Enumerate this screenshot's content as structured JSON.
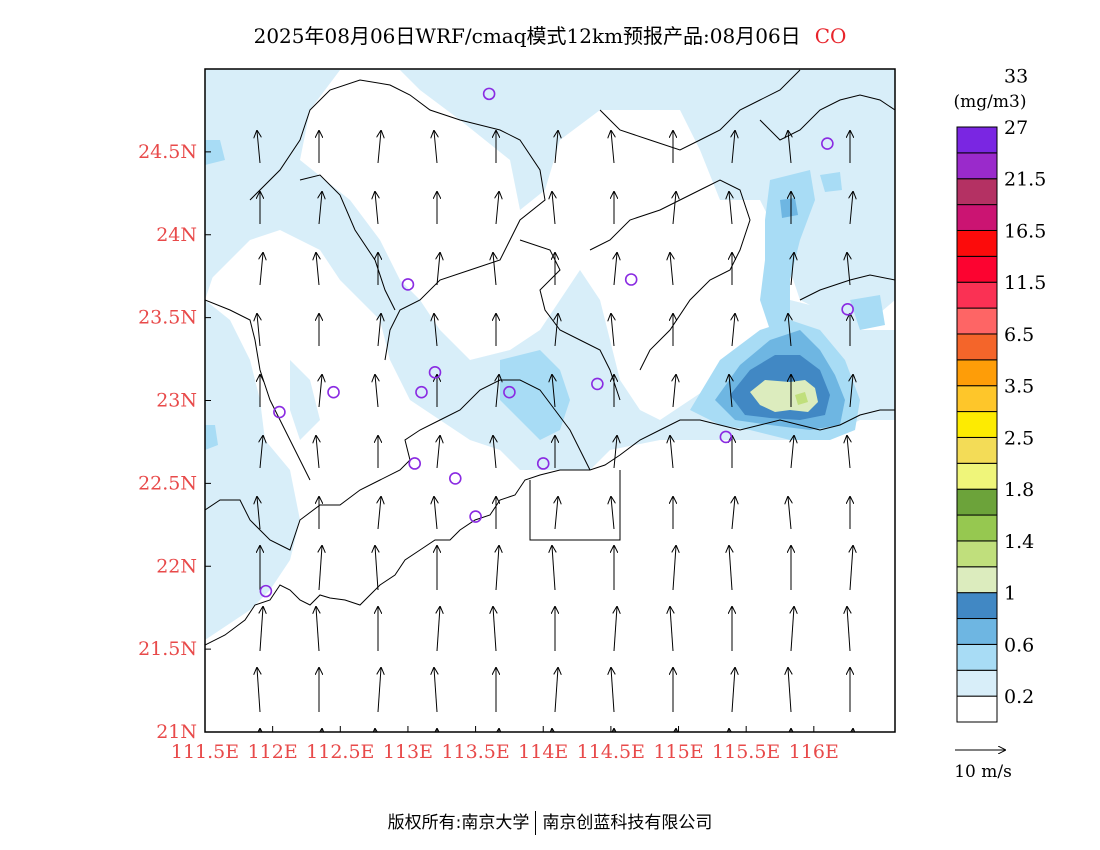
{
  "title": {
    "main": "2025年08月06日WRF/cmaq模式12km预报产品:08月06日",
    "species": "CO"
  },
  "map": {
    "lon_range": [
      111.5,
      116.6
    ],
    "lat_range": [
      21.0,
      25.0
    ],
    "lon_ticks": [
      "111.5E",
      "112E",
      "112.5E",
      "113E",
      "113.5E",
      "114E",
      "114.5E",
      "115E",
      "115.5E",
      "116E"
    ],
    "lat_ticks": [
      "21N",
      "21.5N",
      "22N",
      "22.5N",
      "23N",
      "23.5N",
      "24N",
      "24.5N"
    ],
    "tick_color": "#e84a4a",
    "stations": [
      {
        "lon": 113.6,
        "lat": 24.85
      },
      {
        "lon": 116.1,
        "lat": 24.55
      },
      {
        "lon": 113.0,
        "lat": 23.7
      },
      {
        "lon": 114.65,
        "lat": 23.73
      },
      {
        "lon": 116.25,
        "lat": 23.55
      },
      {
        "lon": 112.45,
        "lat": 23.05
      },
      {
        "lon": 113.1,
        "lat": 23.05
      },
      {
        "lon": 113.2,
        "lat": 23.17
      },
      {
        "lon": 113.75,
        "lat": 23.05
      },
      {
        "lon": 114.4,
        "lat": 23.1
      },
      {
        "lon": 112.05,
        "lat": 22.93
      },
      {
        "lon": 115.35,
        "lat": 22.78
      },
      {
        "lon": 113.05,
        "lat": 22.62
      },
      {
        "lon": 113.35,
        "lat": 22.53
      },
      {
        "lon": 114.0,
        "lat": 22.62
      },
      {
        "lon": 113.5,
        "lat": 22.3
      },
      {
        "lon": 111.95,
        "lat": 21.85
      }
    ],
    "station_color": "#8a2be2",
    "wind": {
      "direction": "southerly",
      "reference_label": "10 m/s"
    }
  },
  "colorbar": {
    "unit": "(mg/m3)",
    "colors": [
      "#ffffff",
      "#d8eef9",
      "#a8dcf5",
      "#6eb6e2",
      "#4188c4",
      "#dcecbe",
      "#c0df7c",
      "#96c850",
      "#6ca33a",
      "#eff57a",
      "#f3dc57",
      "#fdeb01",
      "#fec62a",
      "#fe9d08",
      "#f4652a",
      "#fe6565",
      "#fa3154",
      "#fc0330",
      "#fc0b0b",
      "#cb1472",
      "#b43163",
      "#9a2acb",
      "#7a26e2"
    ],
    "labels": [
      "0.2",
      "0.6",
      "1",
      "1.4",
      "1.8",
      "2.5",
      "3.5",
      "6.5",
      "11.5",
      "16.5",
      "21.5",
      "27",
      "33"
    ]
  },
  "footer": {
    "left": "版权所有:南京大学",
    "right": "南京创蓝科技有限公司"
  }
}
